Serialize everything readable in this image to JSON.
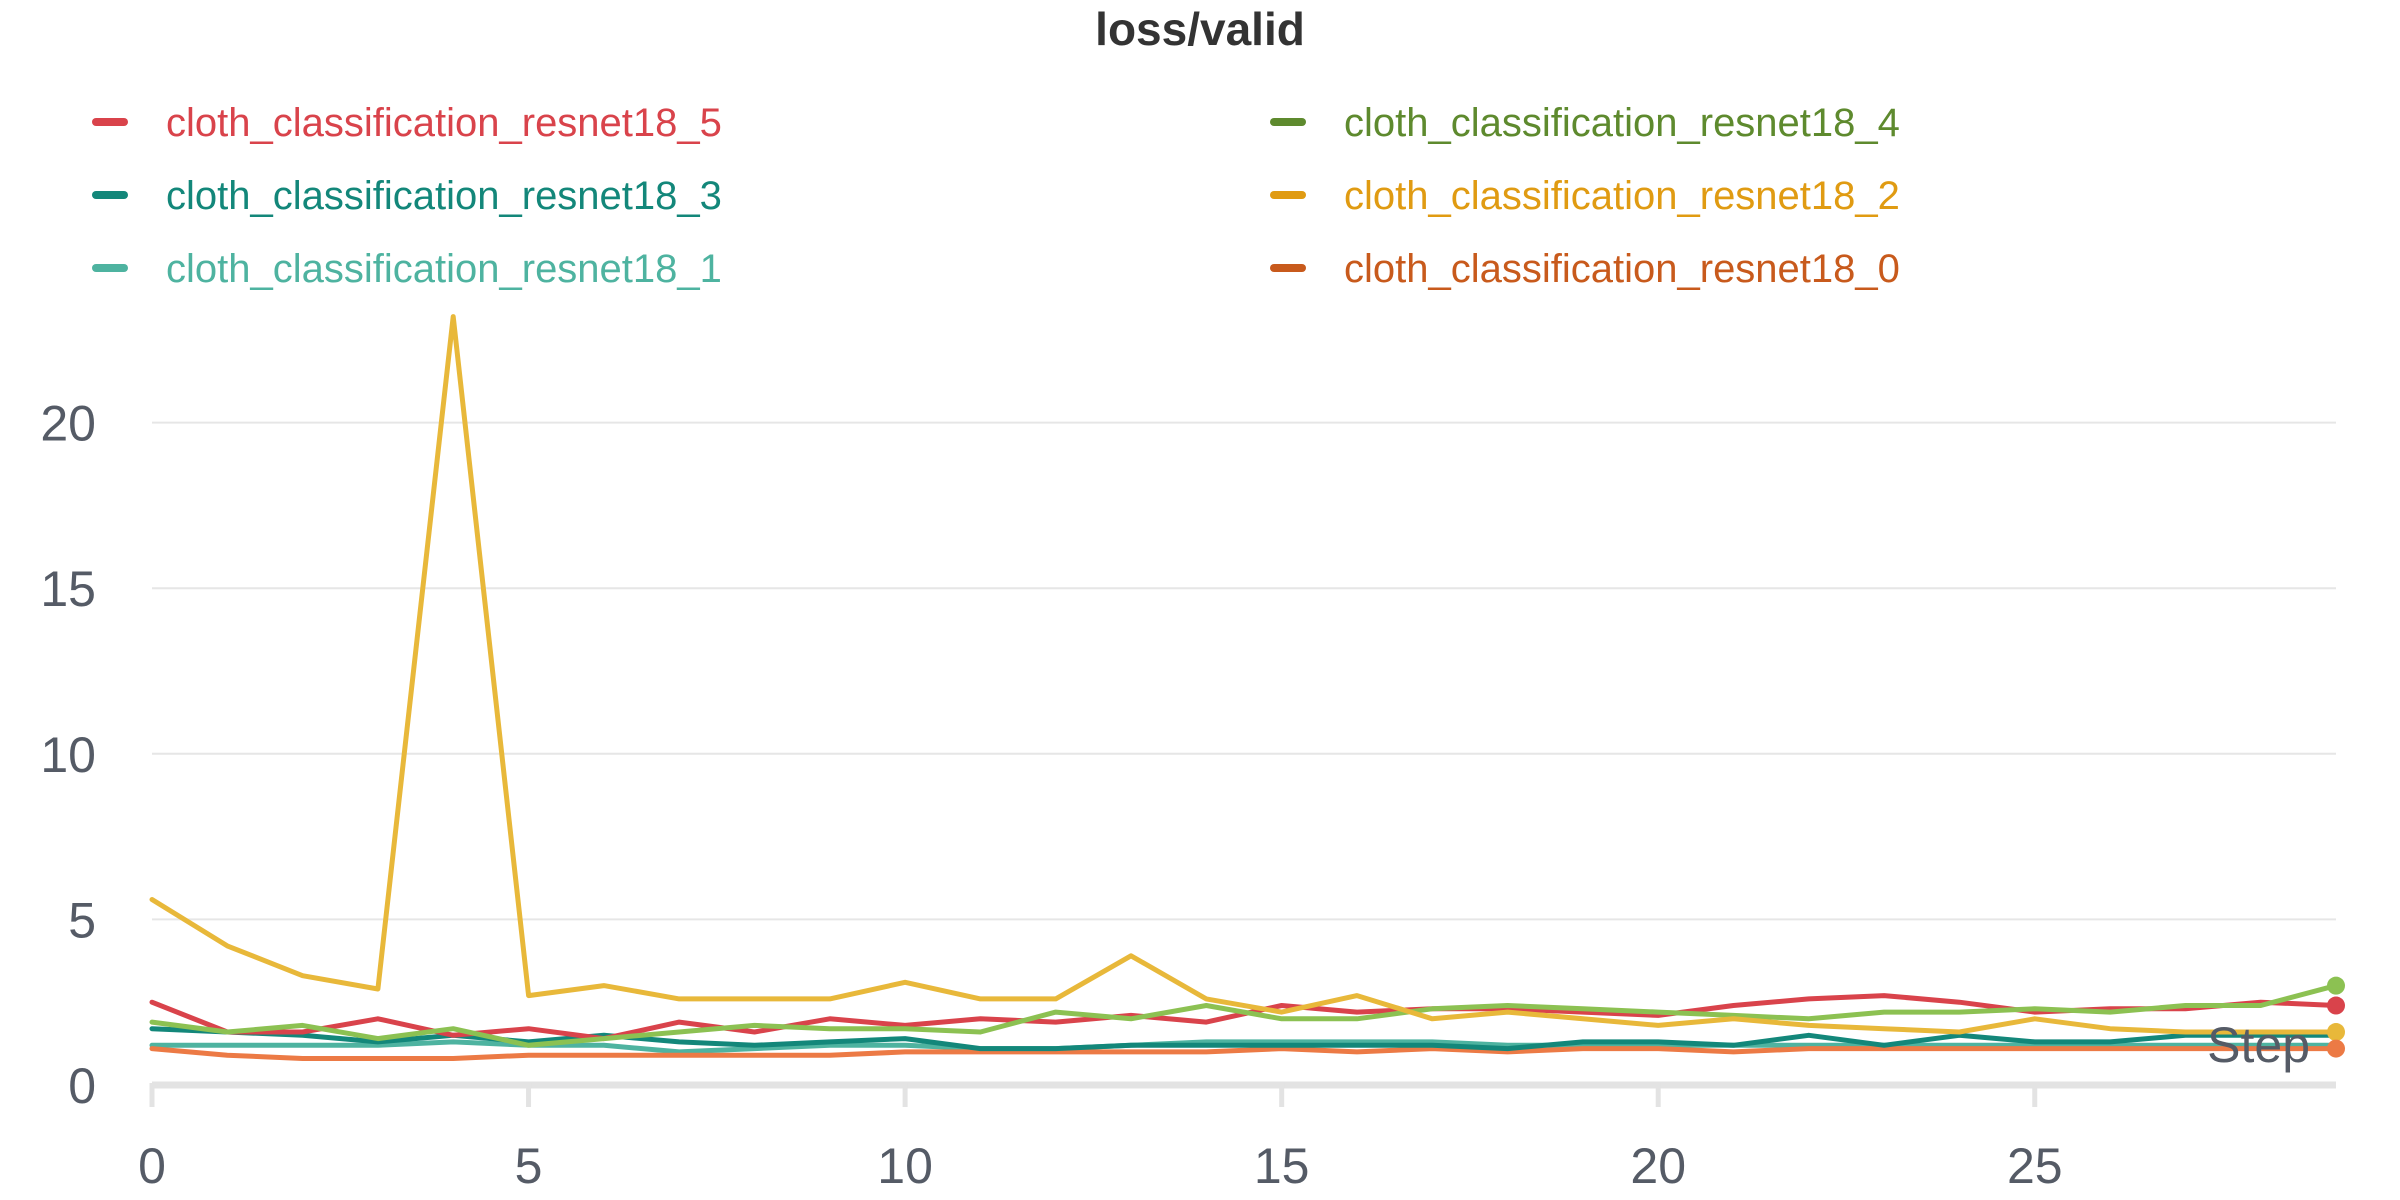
{
  "chart_data": {
    "type": "line",
    "title": "loss/valid",
    "xlabel": "Step",
    "ylabel": "",
    "xlim": [
      0,
      29
    ],
    "ylim": [
      0,
      23.4
    ],
    "xticks": [
      0,
      5,
      10,
      15,
      20,
      25
    ],
    "yticks": [
      0,
      5,
      10,
      15,
      20
    ],
    "grid": true,
    "legend_position": "top",
    "x": [
      0,
      1,
      2,
      3,
      4,
      5,
      6,
      7,
      8,
      9,
      10,
      11,
      12,
      13,
      14,
      15,
      16,
      17,
      18,
      19,
      20,
      21,
      22,
      23,
      24,
      25,
      26,
      27,
      28,
      29
    ],
    "series": [
      {
        "name": "cloth_classification_resnet18_5",
        "color": "#d9434b",
        "values": [
          2.5,
          1.6,
          1.6,
          2.0,
          1.5,
          1.7,
          1.4,
          1.9,
          1.6,
          2.0,
          1.8,
          2.0,
          1.9,
          2.1,
          1.9,
          2.4,
          2.2,
          2.3,
          2.3,
          2.2,
          2.1,
          2.4,
          2.6,
          2.7,
          2.5,
          2.2,
          2.3,
          2.3,
          2.5,
          2.4
        ]
      },
      {
        "name": "cloth_classification_resnet18_4",
        "color": "#8cc152",
        "legend_color": "#5e8a2e",
        "values": [
          1.9,
          1.6,
          1.8,
          1.4,
          1.7,
          1.2,
          1.4,
          1.6,
          1.8,
          1.7,
          1.7,
          1.6,
          2.2,
          2.0,
          2.4,
          2.0,
          2.0,
          2.3,
          2.4,
          2.3,
          2.2,
          2.1,
          2.0,
          2.2,
          2.2,
          2.3,
          2.2,
          2.4,
          2.4,
          3.0
        ]
      },
      {
        "name": "cloth_classification_resnet18_3",
        "color": "#13877a",
        "values": [
          1.7,
          1.6,
          1.5,
          1.3,
          1.5,
          1.3,
          1.5,
          1.3,
          1.2,
          1.3,
          1.4,
          1.1,
          1.1,
          1.2,
          1.2,
          1.2,
          1.2,
          1.2,
          1.1,
          1.3,
          1.3,
          1.2,
          1.5,
          1.2,
          1.5,
          1.3,
          1.3,
          1.5,
          1.5,
          1.5
        ]
      },
      {
        "name": "cloth_classification_resnet18_2",
        "color": "#e8b83a",
        "legend_color": "#e09b12",
        "values": [
          5.6,
          4.2,
          3.3,
          2.9,
          23.2,
          2.7,
          3.0,
          2.6,
          2.6,
          2.6,
          3.1,
          2.6,
          2.6,
          3.9,
          2.6,
          2.2,
          2.7,
          2.0,
          2.2,
          2.0,
          1.8,
          2.0,
          1.8,
          1.7,
          1.6,
          2.0,
          1.7,
          1.6,
          1.6,
          1.6
        ]
      },
      {
        "name": "cloth_classification_resnet18_1",
        "color": "#4eb3a0",
        "values": [
          1.2,
          1.2,
          1.2,
          1.2,
          1.3,
          1.2,
          1.2,
          1.0,
          1.1,
          1.2,
          1.2,
          1.1,
          1.1,
          1.2,
          1.3,
          1.3,
          1.3,
          1.3,
          1.2,
          1.2,
          1.2,
          1.2,
          1.2,
          1.2,
          1.2,
          1.2,
          1.2,
          1.2,
          1.2,
          1.2
        ]
      },
      {
        "name": "cloth_classification_resnet18_0",
        "color": "#ec7a45",
        "legend_color": "#c85a1c",
        "values": [
          1.1,
          0.9,
          0.8,
          0.8,
          0.8,
          0.9,
          0.9,
          0.9,
          0.9,
          0.9,
          1.0,
          1.0,
          1.0,
          1.0,
          1.0,
          1.1,
          1.0,
          1.1,
          1.0,
          1.1,
          1.1,
          1.0,
          1.1,
          1.1,
          1.1,
          1.1,
          1.1,
          1.1,
          1.1,
          1.1
        ]
      }
    ]
  }
}
